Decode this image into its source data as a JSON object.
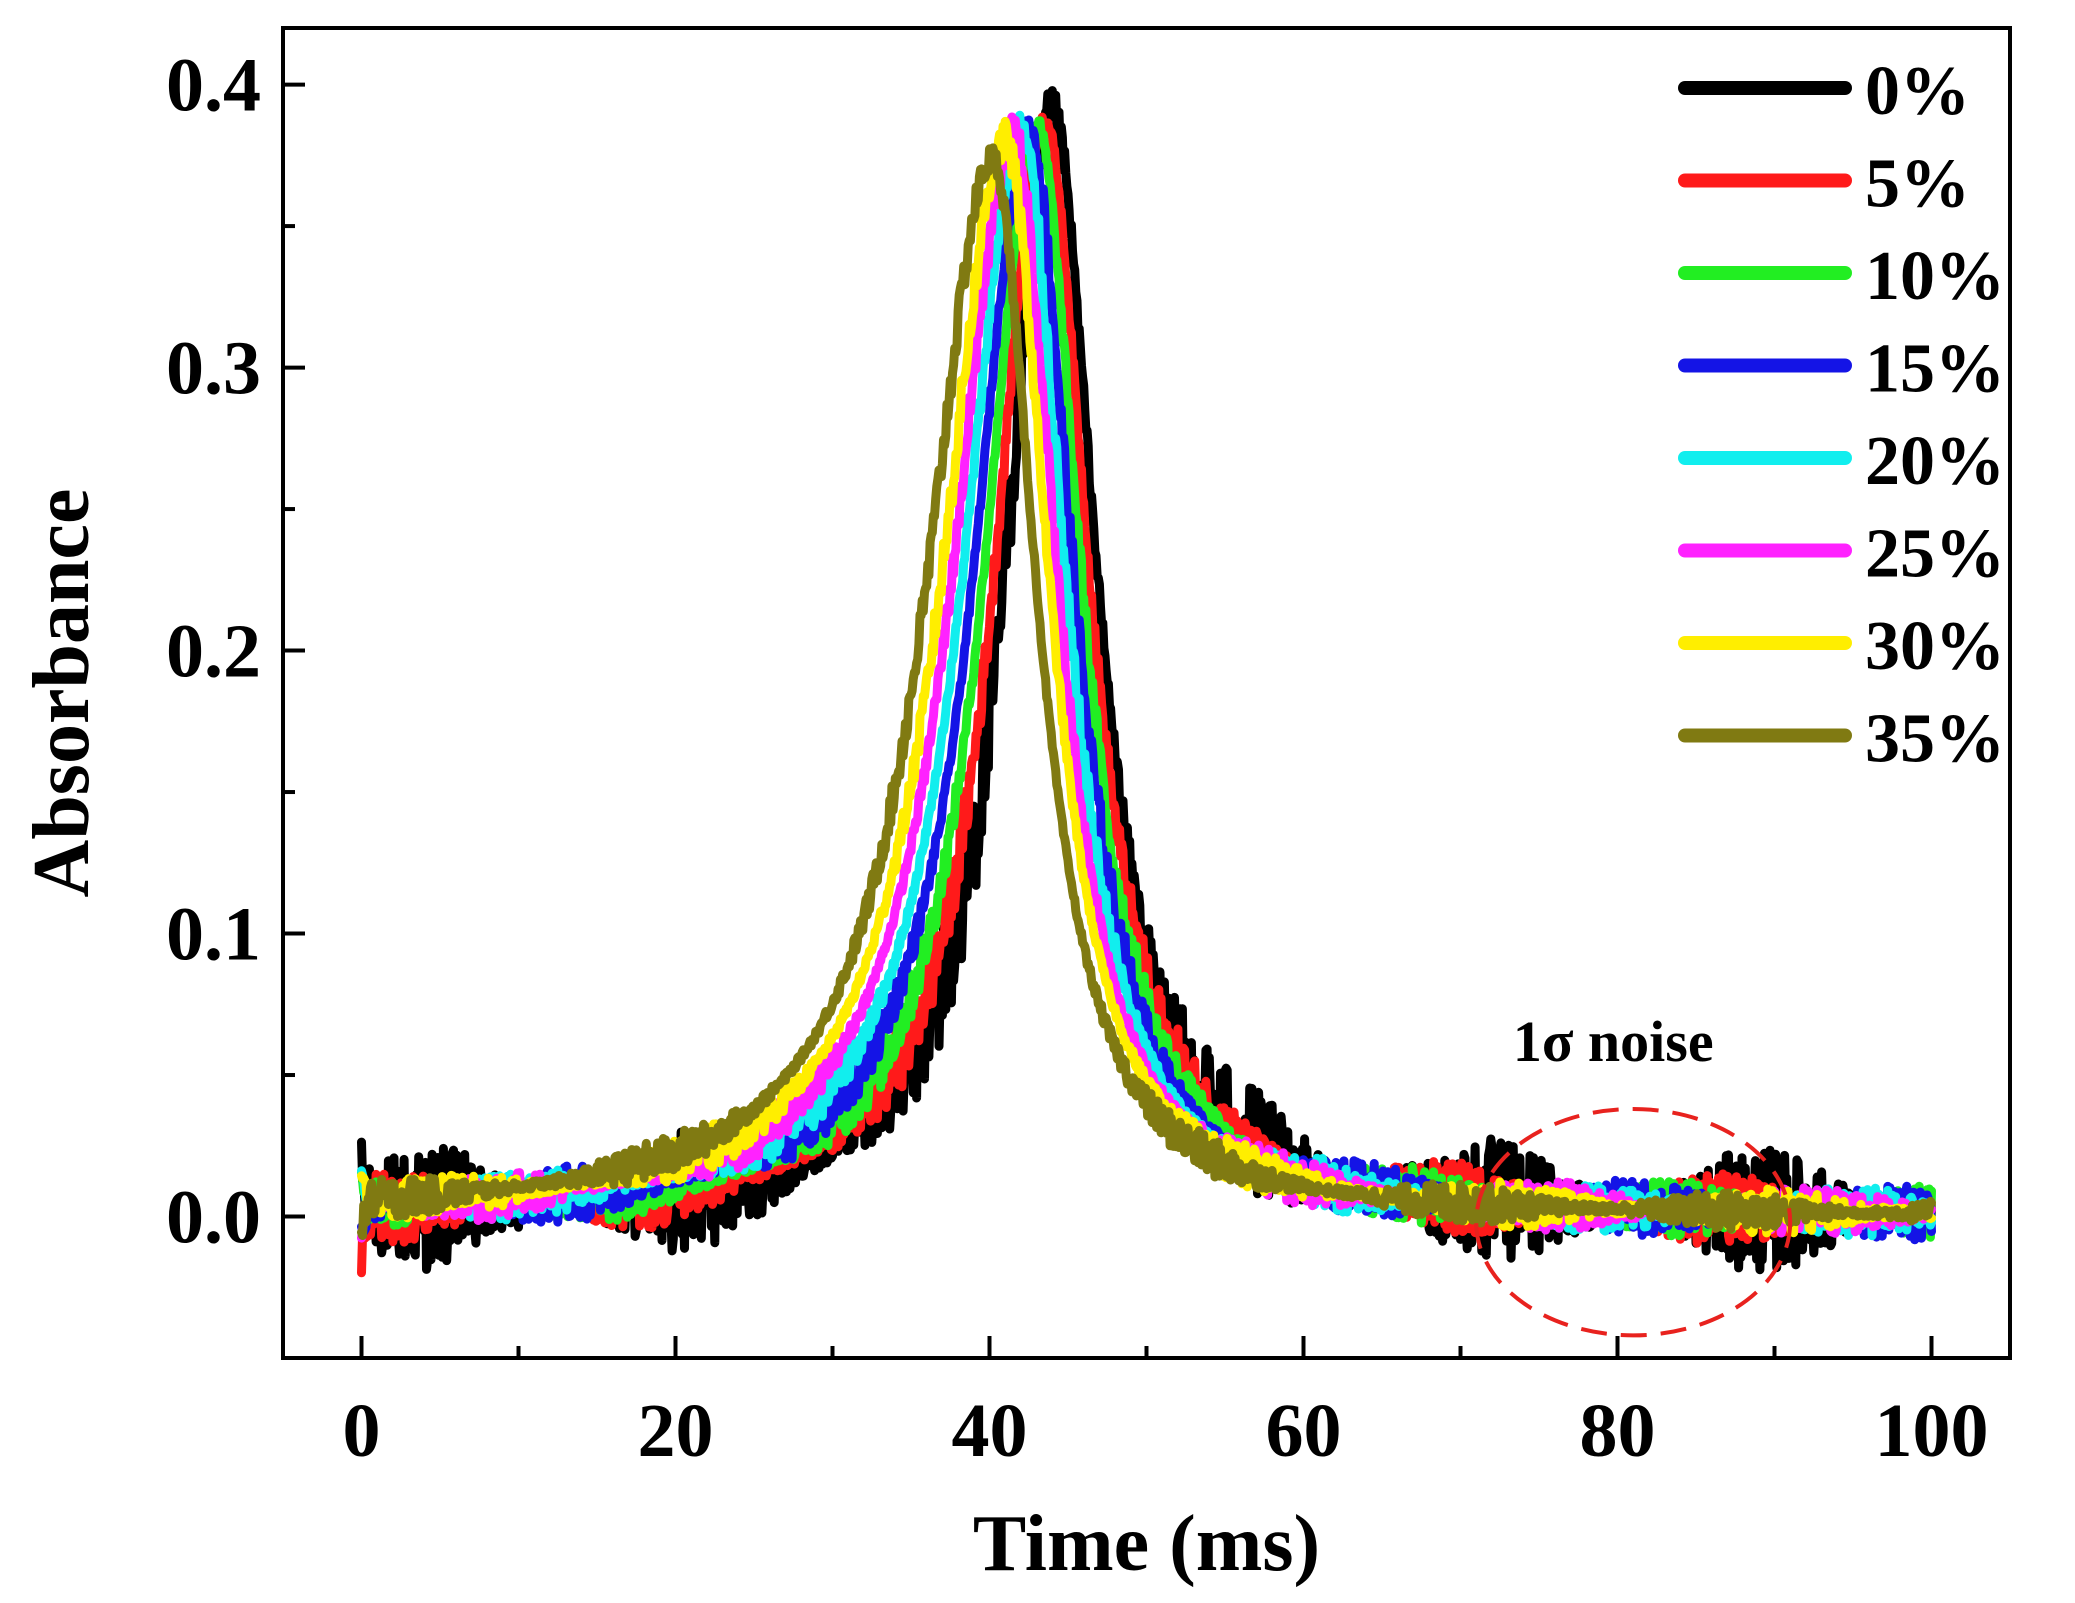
{
  "chart_data": {
    "type": "line",
    "xlabel": "Time (ms)",
    "ylabel": "Absorbance",
    "xlim": [
      -5,
      105
    ],
    "ylim": [
      -0.05,
      0.42
    ],
    "x_ticks": [
      0,
      20,
      40,
      60,
      80,
      100
    ],
    "x_tick_labels": [
      "0",
      "20",
      "40",
      "60",
      "80",
      "100"
    ],
    "y_ticks": [
      0.0,
      0.1,
      0.2,
      0.3,
      0.4
    ],
    "y_tick_labels": [
      "0.0",
      "0.1",
      "0.2",
      "0.3",
      "0.4"
    ],
    "grid": false,
    "legend_position": "top-right",
    "annotation": {
      "text": "1σ noise",
      "ellipse_center": [
        81,
        -0.002
      ],
      "ellipse_radius": [
        10,
        0.04
      ],
      "color": "#e8221e"
    },
    "series": [
      {
        "name": "0%",
        "color": "#000000",
        "peak_x": 44.0,
        "peak_y": 0.39,
        "noise": 0.022
      },
      {
        "name": "5%",
        "color": "#ff1a1a",
        "peak_x": 43.5,
        "peak_y": 0.388,
        "noise": 0.013
      },
      {
        "name": "10%",
        "color": "#22ee22",
        "peak_x": 43.0,
        "peak_y": 0.386,
        "noise": 0.01
      },
      {
        "name": "15%",
        "color": "#1414e6",
        "peak_x": 42.5,
        "peak_y": 0.384,
        "noise": 0.01
      },
      {
        "name": "20%",
        "color": "#11eeee",
        "peak_x": 42.0,
        "peak_y": 0.383,
        "noise": 0.009
      },
      {
        "name": "25%",
        "color": "#ff22ff",
        "peak_x": 41.5,
        "peak_y": 0.382,
        "noise": 0.009
      },
      {
        "name": "30%",
        "color": "#ffee00",
        "peak_x": 41.0,
        "peak_y": 0.38,
        "noise": 0.008
      },
      {
        "name": "35%",
        "color": "#807a12",
        "peak_x": 40.2,
        "peak_y": 0.374,
        "noise": 0.007
      }
    ]
  }
}
